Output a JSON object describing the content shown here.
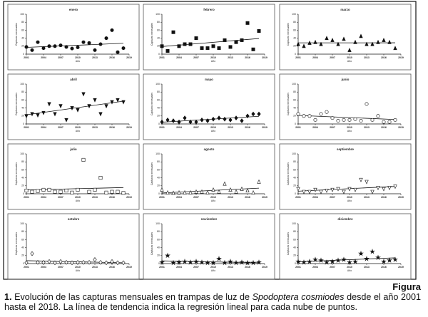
{
  "chart_data": [
    {
      "type": "scatter",
      "title": "enero",
      "marker": "circle",
      "filled": true,
      "x": [
        2001,
        2002,
        2003,
        2004,
        2005,
        2006,
        2007,
        2008,
        2009,
        2010,
        2011,
        2012,
        2013,
        2014,
        2015,
        2016,
        2017,
        2018
      ],
      "values": [
        18,
        10,
        30,
        15,
        20,
        20,
        22,
        18,
        14,
        17,
        30,
        28,
        10,
        25,
        40,
        60,
        5,
        15
      ],
      "xlim": [
        2001,
        2019
      ],
      "ylim": [
        0,
        100
      ],
      "xticks": [
        2001,
        2004,
        2007,
        2010,
        2013,
        2016,
        2019
      ],
      "yticks": [
        0,
        20,
        40,
        60,
        80,
        100
      ],
      "xlabel": "Año",
      "ylabel": "Capturas mensuales",
      "trendline": true
    },
    {
      "type": "scatter",
      "title": "febrero",
      "marker": "square",
      "filled": true,
      "x": [
        2001,
        2002,
        2003,
        2004,
        2005,
        2006,
        2007,
        2008,
        2009,
        2010,
        2011,
        2012,
        2013,
        2014,
        2015,
        2016,
        2017,
        2018
      ],
      "values": [
        20,
        8,
        55,
        20,
        25,
        25,
        40,
        15,
        15,
        20,
        15,
        35,
        18,
        30,
        35,
        78,
        12,
        58
      ],
      "xlim": [
        2001,
        2019
      ],
      "ylim": [
        0,
        100
      ],
      "xticks": [
        2001,
        2004,
        2007,
        2010,
        2013,
        2016,
        2019
      ],
      "yticks": [
        0,
        20,
        40,
        60,
        80,
        100
      ],
      "xlabel": "Año",
      "ylabel": "Capturas mensuales",
      "trendline": true
    },
    {
      "type": "scatter",
      "title": "marzo",
      "marker": "triangle",
      "filled": true,
      "x": [
        2001,
        2002,
        2003,
        2004,
        2005,
        2006,
        2007,
        2008,
        2009,
        2010,
        2011,
        2012,
        2013,
        2014,
        2015,
        2016,
        2017,
        2018
      ],
      "values": [
        25,
        20,
        28,
        30,
        25,
        40,
        35,
        25,
        38,
        10,
        30,
        45,
        25,
        25,
        30,
        35,
        30,
        15
      ],
      "xlim": [
        2001,
        2019
      ],
      "ylim": [
        0,
        100
      ],
      "xticks": [
        2001,
        2004,
        2007,
        2010,
        2013,
        2016,
        2019
      ],
      "yticks": [
        0,
        20,
        40,
        60,
        80,
        100
      ],
      "xlabel": "Año",
      "ylabel": "Capturas mensuales",
      "trendline": true
    },
    {
      "type": "scatter",
      "title": "abril",
      "marker": "triangle-down",
      "filled": true,
      "x": [
        2001,
        2002,
        2003,
        2004,
        2005,
        2006,
        2007,
        2008,
        2009,
        2010,
        2011,
        2012,
        2013,
        2014,
        2015,
        2016,
        2017,
        2018
      ],
      "values": [
        20,
        25,
        22,
        28,
        50,
        25,
        45,
        10,
        40,
        35,
        75,
        45,
        60,
        25,
        45,
        55,
        60,
        55
      ],
      "xlim": [
        2001,
        2019
      ],
      "ylim": [
        0,
        100
      ],
      "xticks": [
        2001,
        2004,
        2007,
        2010,
        2013,
        2016,
        2019
      ],
      "yticks": [
        0,
        20,
        40,
        60,
        80,
        100
      ],
      "xlabel": "Año",
      "ylabel": "Capturas mensuales",
      "trendline": true
    },
    {
      "type": "scatter",
      "title": "mayo",
      "marker": "diamond",
      "filled": true,
      "x": [
        2001,
        2002,
        2003,
        2004,
        2005,
        2006,
        2007,
        2008,
        2009,
        2010,
        2011,
        2012,
        2013,
        2014,
        2015,
        2016,
        2017,
        2018
      ],
      "values": [
        5,
        10,
        8,
        5,
        15,
        5,
        5,
        10,
        8,
        12,
        15,
        12,
        10,
        15,
        8,
        20,
        25,
        25
      ],
      "xlim": [
        2001,
        2019
      ],
      "ylim": [
        0,
        100
      ],
      "xticks": [
        2001,
        2004,
        2007,
        2010,
        2013,
        2016,
        2019
      ],
      "yticks": [
        0,
        20,
        40,
        60,
        80,
        100
      ],
      "xlabel": "Año",
      "ylabel": "Capturas mensuales",
      "trendline": true
    },
    {
      "type": "scatter",
      "title": "junio",
      "marker": "circle",
      "filled": false,
      "x": [
        2001,
        2002,
        2003,
        2004,
        2005,
        2006,
        2007,
        2008,
        2009,
        2010,
        2011,
        2012,
        2013,
        2014,
        2015,
        2016,
        2017,
        2018
      ],
      "values": [
        25,
        20,
        20,
        10,
        25,
        30,
        15,
        8,
        10,
        10,
        12,
        8,
        50,
        10,
        20,
        5,
        5,
        10
      ],
      "xlim": [
        2001,
        2019
      ],
      "ylim": [
        0,
        100
      ],
      "xticks": [
        2001,
        2004,
        2007,
        2010,
        2013,
        2016,
        2019
      ],
      "yticks": [
        0,
        20,
        40,
        60,
        80,
        100
      ],
      "xlabel": "Año",
      "ylabel": "Capturas mensuales",
      "trendline": true
    },
    {
      "type": "scatter",
      "title": "julio",
      "marker": "square",
      "filled": false,
      "x": [
        2001,
        2002,
        2003,
        2004,
        2005,
        2006,
        2007,
        2008,
        2009,
        2010,
        2011,
        2012,
        2013,
        2014,
        2015,
        2016,
        2017,
        2018
      ],
      "values": [
        8,
        5,
        7,
        10,
        10,
        5,
        5,
        8,
        3,
        10,
        85,
        5,
        10,
        40,
        3,
        5,
        5,
        2
      ],
      "xlim": [
        2001,
        2019
      ],
      "ylim": [
        0,
        100
      ],
      "xticks": [
        2001,
        2004,
        2007,
        2010,
        2013,
        2016,
        2019
      ],
      "yticks": [
        0,
        20,
        40,
        60,
        80,
        100
      ],
      "xlabel": "Año",
      "ylabel": "Capturas mensuales",
      "trendline": true
    },
    {
      "type": "scatter",
      "title": "agosto",
      "marker": "triangle",
      "filled": false,
      "x": [
        2001,
        2002,
        2003,
        2004,
        2005,
        2006,
        2007,
        2008,
        2009,
        2010,
        2011,
        2012,
        2013,
        2014,
        2015,
        2016,
        2017,
        2018
      ],
      "values": [
        10,
        3,
        2,
        3,
        3,
        3,
        5,
        5,
        3,
        10,
        5,
        25,
        10,
        5,
        12,
        8,
        3,
        30
      ],
      "xlim": [
        2001,
        2019
      ],
      "ylim": [
        0,
        100
      ],
      "xticks": [
        2001,
        2004,
        2007,
        2010,
        2013,
        2016,
        2019
      ],
      "yticks": [
        0,
        20,
        40,
        60,
        80,
        100
      ],
      "xlabel": "Año",
      "ylabel": "Capturas mensuales",
      "trendline": true
    },
    {
      "type": "scatter",
      "title": "septiembre",
      "marker": "triangle-down",
      "filled": false,
      "x": [
        2001,
        2002,
        2003,
        2004,
        2005,
        2006,
        2007,
        2008,
        2009,
        2010,
        2011,
        2012,
        2013,
        2014,
        2015,
        2016,
        2017,
        2018
      ],
      "values": [
        12,
        5,
        5,
        10,
        5,
        8,
        10,
        12,
        5,
        12,
        10,
        35,
        30,
        5,
        15,
        12,
        15,
        18
      ],
      "xlim": [
        2001,
        2019
      ],
      "ylim": [
        0,
        100
      ],
      "xticks": [
        2001,
        2004,
        2007,
        2010,
        2013,
        2016,
        2019
      ],
      "yticks": [
        0,
        20,
        40,
        60,
        80,
        100
      ],
      "xlabel": "Año",
      "ylabel": "Capturas mensuales",
      "trendline": true
    },
    {
      "type": "scatter",
      "title": "octubre",
      "marker": "diamond",
      "filled": false,
      "x": [
        2001,
        2002,
        2003,
        2004,
        2005,
        2006,
        2007,
        2008,
        2009,
        2010,
        2011,
        2012,
        2013,
        2014,
        2015,
        2016,
        2017,
        2018
      ],
      "values": [
        2,
        25,
        3,
        3,
        5,
        2,
        5,
        3,
        2,
        3,
        3,
        3,
        10,
        3,
        2,
        5,
        2,
        2
      ],
      "xlim": [
        2001,
        2019
      ],
      "ylim": [
        0,
        100
      ],
      "xticks": [
        2001,
        2004,
        2007,
        2010,
        2013,
        2016,
        2019
      ],
      "yticks": [
        0,
        20,
        40,
        60,
        80,
        100
      ],
      "xlabel": "Año",
      "ylabel": "Capturas mensuales",
      "trendline": true
    },
    {
      "type": "scatter",
      "title": "noviembre",
      "marker": "star",
      "filled": true,
      "x": [
        2001,
        2002,
        2003,
        2004,
        2005,
        2006,
        2007,
        2008,
        2009,
        2010,
        2011,
        2012,
        2013,
        2014,
        2015,
        2016,
        2017,
        2018
      ],
      "values": [
        3,
        20,
        2,
        3,
        5,
        3,
        5,
        3,
        2,
        2,
        12,
        2,
        5,
        2,
        3,
        2,
        2,
        3
      ],
      "xlim": [
        2001,
        2019
      ],
      "ylim": [
        0,
        100
      ],
      "xticks": [
        2001,
        2004,
        2007,
        2010,
        2013,
        2016,
        2019
      ],
      "yticks": [
        0,
        20,
        40,
        60,
        80,
        100
      ],
      "xlabel": "Año",
      "ylabel": "Capturas mensuales",
      "trendline": true
    },
    {
      "type": "scatter",
      "title": "diciembre",
      "marker": "star",
      "filled": true,
      "x": [
        2001,
        2002,
        2003,
        2004,
        2005,
        2006,
        2007,
        2008,
        2009,
        2010,
        2011,
        2012,
        2013,
        2014,
        2015,
        2016,
        2017,
        2018
      ],
      "values": [
        5,
        3,
        5,
        10,
        8,
        3,
        5,
        8,
        10,
        3,
        5,
        25,
        12,
        30,
        15,
        5,
        8,
        10
      ],
      "xlim": [
        2001,
        2019
      ],
      "ylim": [
        0,
        100
      ],
      "xticks": [
        2001,
        2004,
        2007,
        2010,
        2013,
        2016,
        2019
      ],
      "yticks": [
        0,
        20,
        40,
        60,
        80,
        100
      ],
      "xlabel": "Año",
      "ylabel": "Capturas mensuales",
      "trendline": true
    }
  ],
  "caption": {
    "label": "Figura",
    "number": "1.",
    "text_before": " Evolución de las capturas mensuales en trampas de luz de ",
    "species": "Spodoptera cosmiodes",
    "text_after": " desde el año 2001 hasta el 2018. La línea de tendencia indica la regresión lineal para cada nube de puntos."
  }
}
